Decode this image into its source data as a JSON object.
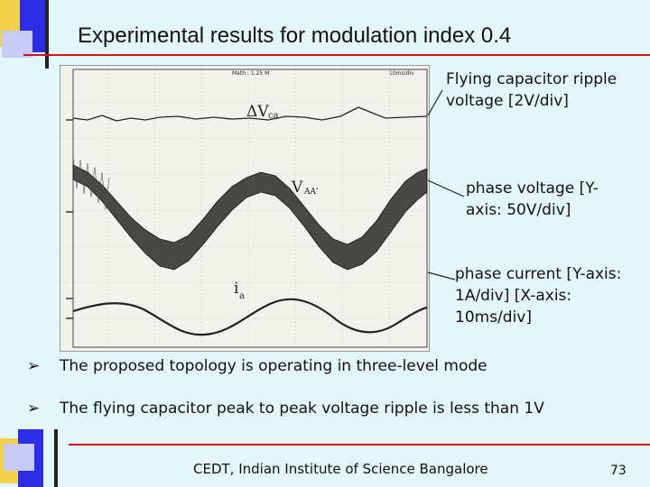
{
  "slide": {
    "title": "Experimental results for modulation index 0.4",
    "annotations": {
      "ripple": "Flying capacitor ripple voltage [2V/div]",
      "voltage": "phase voltage [Y-axis: 50V/div]",
      "current": "phase current [Y-axis: 1A/div] [X-axis: 10ms/div]"
    },
    "bullets": [
      "The proposed topology is operating in three-level mode",
      "The flying capacitor peak to peak voltage ripple is less than 1V"
    ],
    "bullet_glyph": "➢",
    "footer": "CEDT, Indian Institute of Science Bangalore",
    "page_number": "73"
  },
  "scope": {
    "top_text": "Math : 1.25 M",
    "timebase": "10ms/div",
    "trace_labels": {
      "ripple": "ΔV",
      "ripple_sub": "ca",
      "voltage": "V",
      "voltage_sub": "AA'",
      "current": "i",
      "current_sub": "a"
    }
  },
  "colors": {
    "background": "#e3f6f9",
    "deco_blue": "#3a3ae0",
    "deco_yellow": "#f4d000",
    "deco_red": "#d02020"
  }
}
